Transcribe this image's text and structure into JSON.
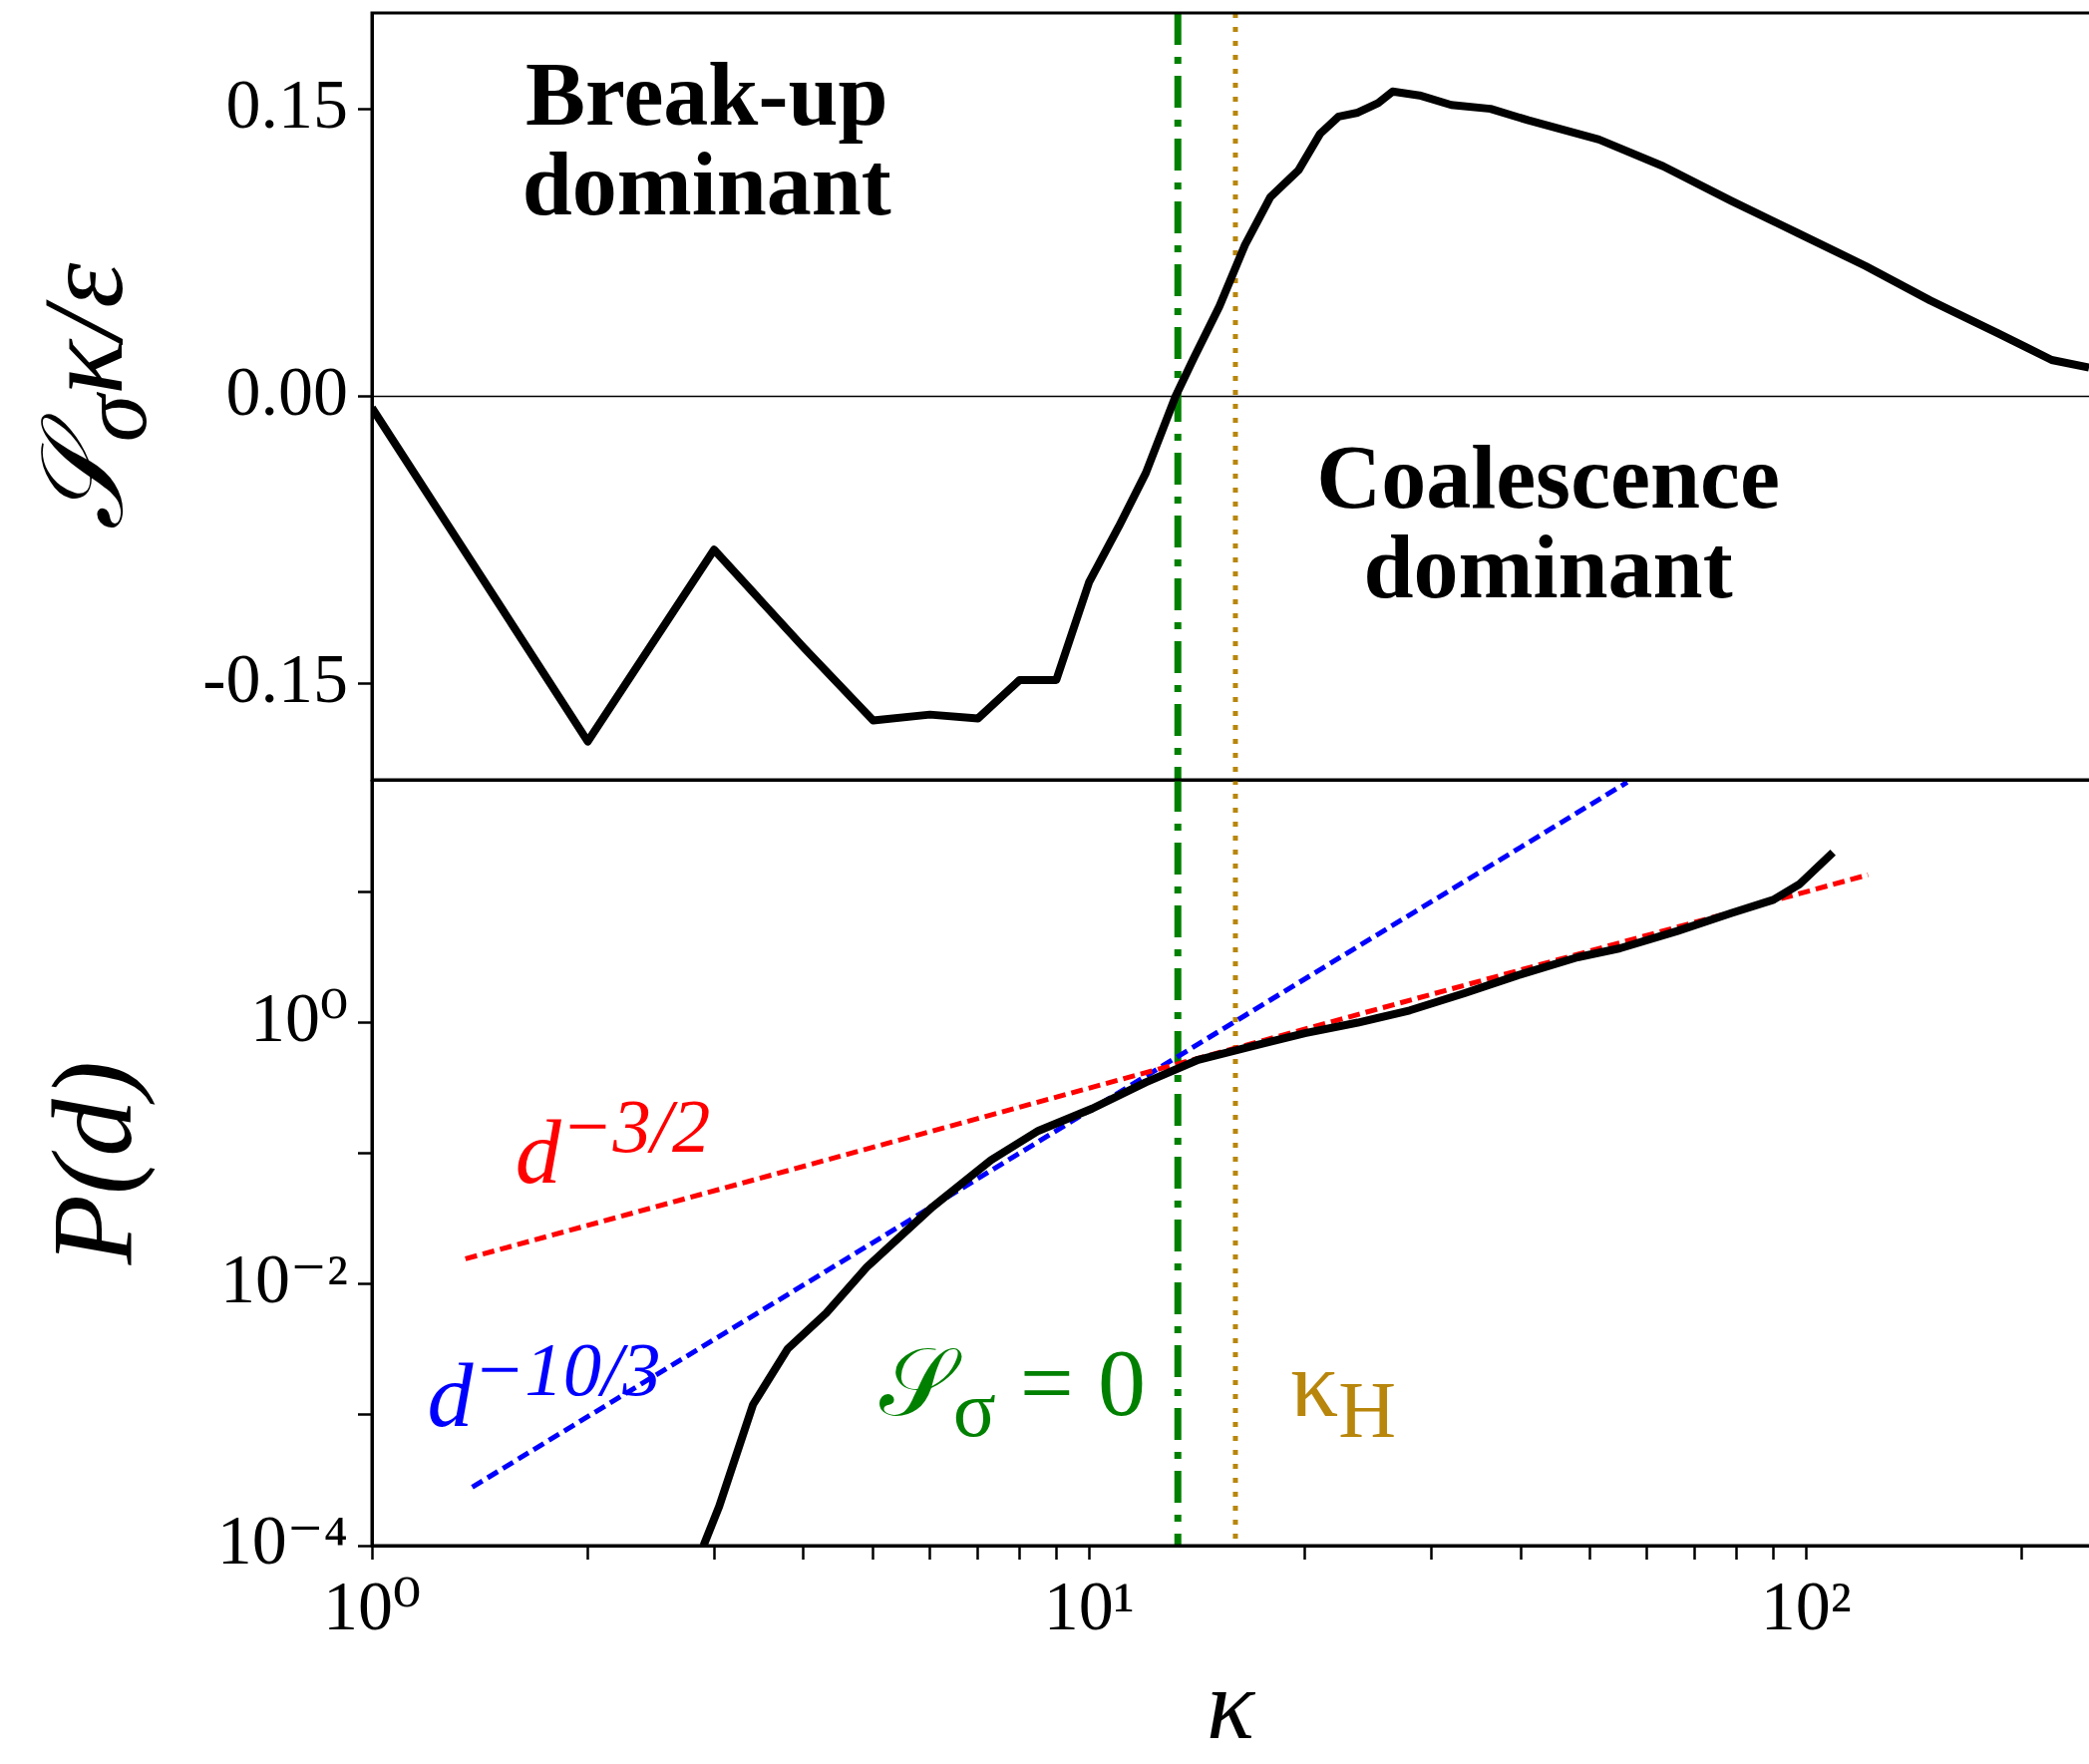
{
  "chart_data": [
    {
      "type": "line",
      "ylabel": "𝒮$_{σ}$κ/ε",
      "annotations": [
        "Break-up dominant",
        "Coalescence dominant"
      ],
      "x": [
        1,
        2,
        3,
        4,
        5,
        6,
        7,
        8,
        9,
        10,
        11,
        12,
        13.2,
        14,
        15.2,
        16.5,
        17.9,
        19.6,
        21,
        22.3,
        23.7,
        25.3,
        26.5,
        28.9,
        32,
        36.3,
        41,
        51.4,
        63.2,
        78.6,
        97.6,
        121,
        149,
        185,
        220,
        248
      ],
      "series": [
        {
          "color": "#000000",
          "values": [
            -0.006,
            -0.18,
            -0.08,
            -0.131,
            -0.169,
            -0.166,
            -0.168,
            -0.148,
            -0.148,
            -0.097,
            -0.068,
            -0.04,
            0,
            0.02,
            0.047,
            0.079,
            0.104,
            0.118,
            0.137,
            0.146,
            0.148,
            0.153,
            0.159,
            0.157,
            0.152,
            0.15,
            0.144,
            0.134,
            0.12,
            0.102,
            0.085,
            0.068,
            0.05,
            0.033,
            0.019,
            0.015
          ]
        }
      ],
      "log": "x",
      "xlim": [
        1,
        248
      ],
      "ylim": [
        -0.2,
        0.2
      ],
      "yticks": [
        -0.15,
        {
          "value": 0,
          "label": "0.00"
        },
        0.15
      ],
      "tick_labels": "y",
      "ref_lines": [
        {
          "axis": "y",
          "value": 0,
          "color": "#000000",
          "line_style": "solid"
        },
        {
          "axis": "x",
          "value": 13.3,
          "color": "#008000",
          "line_style": "dashdot"
        },
        {
          "axis": "x",
          "value": 16,
          "color": "#b8860b",
          "line_style": "dotted"
        }
      ],
      "grid": false,
      "legend": false,
      "marker": "none",
      "line_style": "solid"
    },
    {
      "type": "line",
      "xlabel": "κ",
      "ylabel": "P(d)",
      "annotations": [
        "𝒮$_{σ}$ = 0"
      ],
      "series": [
        {
          "color": "#000000",
          "line_style": "solid",
          "x": [
            2.9,
            3.05,
            3.4,
            3.8,
            4.3,
            4.9,
            6.05,
            7.3,
            8.5,
            10.1,
            12,
            14.2,
            16.9,
            20,
            23.7,
            28,
            33.4,
            39.6,
            48,
            55,
            66,
            78.8,
            90,
            98,
            109
          ],
          "values": [
            0.0001,
            0.0002,
            0.0012,
            0.0032,
            0.006,
            0.0135,
            0.039,
            0.089,
            0.149,
            0.22,
            0.35,
            0.52,
            0.66,
            0.83,
            1.0,
            1.24,
            1.68,
            2.3,
            3.16,
            3.7,
            5.0,
            6.9,
            8.7,
            11.5,
            20
          ]
        },
        {
          "name": "d$^{−3/2}$",
          "color": "#ff0000",
          "line_style": "dashed",
          "x": [
            1.35,
            122
          ],
          "values": [
            0.0156,
            13.5
          ]
        },
        {
          "name": "d$^{−10/3}$",
          "color": "#0000ff",
          "line_style": "dashed",
          "x": [
            1.38,
            56.3
          ],
          "values": [
            0.00028,
            69
          ]
        }
      ],
      "log": "xy",
      "xlim": [
        1,
        248
      ],
      "ylim": [
        0.0001,
        72
      ],
      "xticks": [
        {
          "value": 1,
          "label": "10⁰"
        },
        {
          "value": 2,
          "label": null
        },
        {
          "value": 3,
          "label": null
        },
        {
          "value": 4,
          "label": null
        },
        {
          "value": 5,
          "label": null
        },
        {
          "value": 6,
          "label": null
        },
        {
          "value": 7,
          "label": null
        },
        {
          "value": 8,
          "label": null
        },
        {
          "value": 9,
          "label": null
        },
        {
          "value": 10,
          "label": "10¹"
        },
        {
          "value": 20,
          "label": null
        },
        {
          "value": 30,
          "label": null
        },
        {
          "value": 40,
          "label": null
        },
        {
          "value": 50,
          "label": null
        },
        {
          "value": 60,
          "label": null
        },
        {
          "value": 70,
          "label": null
        },
        {
          "value": 80,
          "label": null
        },
        {
          "value": 90,
          "label": null
        },
        {
          "value": 100,
          "label": "10²"
        },
        {
          "value": 200,
          "label": null
        }
      ],
      "yticks": [
        {
          "value": 0.0001,
          "label": "10⁻⁴"
        },
        {
          "value": 0.001,
          "label": null
        },
        {
          "value": 0.01,
          "label": "10⁻²"
        },
        {
          "value": 0.1,
          "label": null
        },
        {
          "value": 1,
          "label": "10⁰"
        },
        {
          "value": 10,
          "label": null
        }
      ],
      "ref_lines": [
        {
          "axis": "x",
          "value": 13.3,
          "color": "#008000",
          "line_style": "dashdot"
        },
        {
          "axis": "x",
          "value": 16,
          "label": "κ$_{H}$",
          "color": "#b8860b",
          "line_style": "dotted"
        }
      ],
      "grid": false,
      "legend": false,
      "marker": "none"
    }
  ]
}
